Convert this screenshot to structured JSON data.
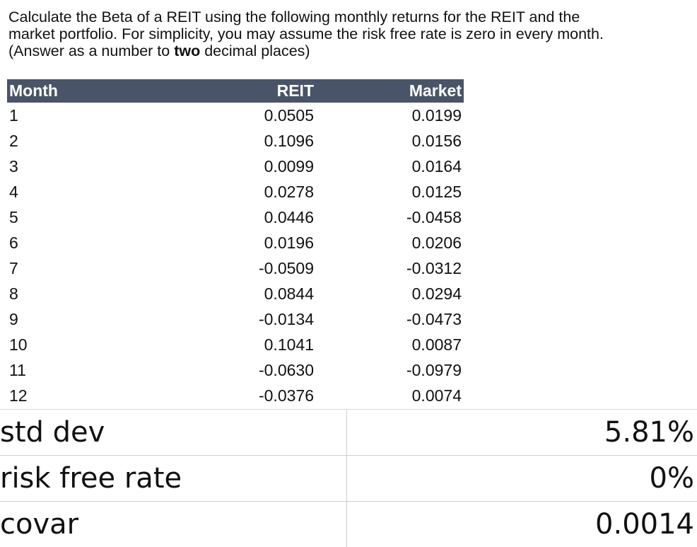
{
  "question": {
    "line1": "Calculate the Beta of a REIT using the following monthly returns for the REIT and the",
    "line2": "market portfolio. For simplicity, you may assume the risk free rate is zero in every month.",
    "line3_before": "(Answer as a number to ",
    "line3_bold": "two",
    "line3_after": " decimal places)"
  },
  "returns_table": {
    "headers": [
      "Month",
      "REIT",
      "Market"
    ],
    "rows": [
      {
        "month": "1",
        "reit": "0.0505",
        "market": "0.0199"
      },
      {
        "month": "2",
        "reit": "0.1096",
        "market": "0.0156"
      },
      {
        "month": "3",
        "reit": "0.0099",
        "market": "0.0164"
      },
      {
        "month": "4",
        "reit": "0.0278",
        "market": "0.0125"
      },
      {
        "month": "5",
        "reit": "0.0446",
        "market": "-0.0458"
      },
      {
        "month": "6",
        "reit": "0.0196",
        "market": "0.0206"
      },
      {
        "month": "7",
        "reit": "-0.0509",
        "market": "-0.0312"
      },
      {
        "month": "8",
        "reit": "0.0844",
        "market": "0.0294"
      },
      {
        "month": "9",
        "reit": "-0.0134",
        "market": "-0.0473"
      },
      {
        "month": "10",
        "reit": "0.1041",
        "market": "0.0087"
      },
      {
        "month": "11",
        "reit": "-0.0630",
        "market": "-0.0979"
      },
      {
        "month": "12",
        "reit": "-0.0376",
        "market": "0.0074"
      }
    ]
  },
  "stats": [
    {
      "label": "std dev",
      "value": "5.81%"
    },
    {
      "label": "risk free rate",
      "value": "0%"
    },
    {
      "label": "covar",
      "value": "0.0014"
    }
  ],
  "colors": {
    "header_bg": "#4a5468",
    "header_text": "#ffffff",
    "grid_line": "#cfcfcf"
  }
}
